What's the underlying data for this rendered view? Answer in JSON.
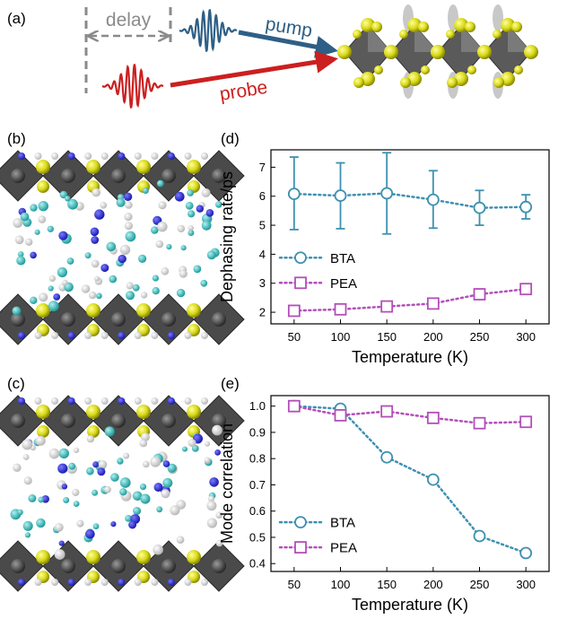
{
  "panel_labels": {
    "a": "(a)",
    "b": "(b)",
    "c": "(c)",
    "d": "(d)",
    "e": "(e)"
  },
  "schematic": {
    "delay_label": "delay",
    "pump_label": "pump",
    "probe_label": "probe",
    "colors": {
      "pump": "#2e5f86",
      "probe": "#cc1f1f",
      "delay": "#8a8a8a",
      "lead": "#555555",
      "halide": "#d8d81c"
    }
  },
  "colors": {
    "BTA": "#3f90b0",
    "PEA": "#b34fb8"
  },
  "chart_data": [
    {
      "type": "line",
      "panel": "(d)",
      "x": [
        50,
        100,
        150,
        200,
        250,
        300
      ],
      "xlabel": "Temperature (K)",
      "ylabel": "Dephasing rate/ps",
      "xlim": [
        25,
        325
      ],
      "ylim": [
        1.6,
        7.6
      ],
      "xticks": [
        50,
        100,
        150,
        200,
        250,
        300
      ],
      "yticks": [
        2,
        3,
        4,
        5,
        6,
        7
      ],
      "legend_position": "left",
      "series": [
        {
          "name": "BTA",
          "marker": "circle",
          "values": [
            6.08,
            6.02,
            6.1,
            5.88,
            5.6,
            5.63
          ],
          "err_low": [
            4.85,
            4.88,
            4.7,
            4.9,
            5.0,
            5.22
          ],
          "err_high": [
            7.35,
            7.15,
            7.5,
            6.88,
            6.2,
            6.05
          ]
        },
        {
          "name": "PEA",
          "marker": "square",
          "values": [
            2.05,
            2.1,
            2.2,
            2.3,
            2.62,
            2.8
          ]
        }
      ]
    },
    {
      "type": "line",
      "panel": "(e)",
      "x": [
        50,
        100,
        150,
        200,
        250,
        300
      ],
      "xlabel": "Temperature (K)",
      "ylabel": "Mode correlation",
      "xlim": [
        25,
        325
      ],
      "ylim": [
        0.37,
        1.04
      ],
      "xticks": [
        50,
        100,
        150,
        200,
        250,
        300
      ],
      "yticks": [
        0.4,
        0.5,
        0.6,
        0.7,
        0.8,
        0.9,
        1.0
      ],
      "ytick_labels": [
        "0.4",
        "0.5",
        "0.6",
        "0.7",
        "0.8",
        "0.9",
        "1.0"
      ],
      "legend_position": "bottom-left",
      "series": [
        {
          "name": "BTA",
          "marker": "circle",
          "values": [
            1.0,
            0.99,
            0.805,
            0.72,
            0.505,
            0.44
          ]
        },
        {
          "name": "PEA",
          "marker": "square",
          "values": [
            1.0,
            0.965,
            0.98,
            0.955,
            0.935,
            0.94
          ]
        }
      ]
    }
  ]
}
